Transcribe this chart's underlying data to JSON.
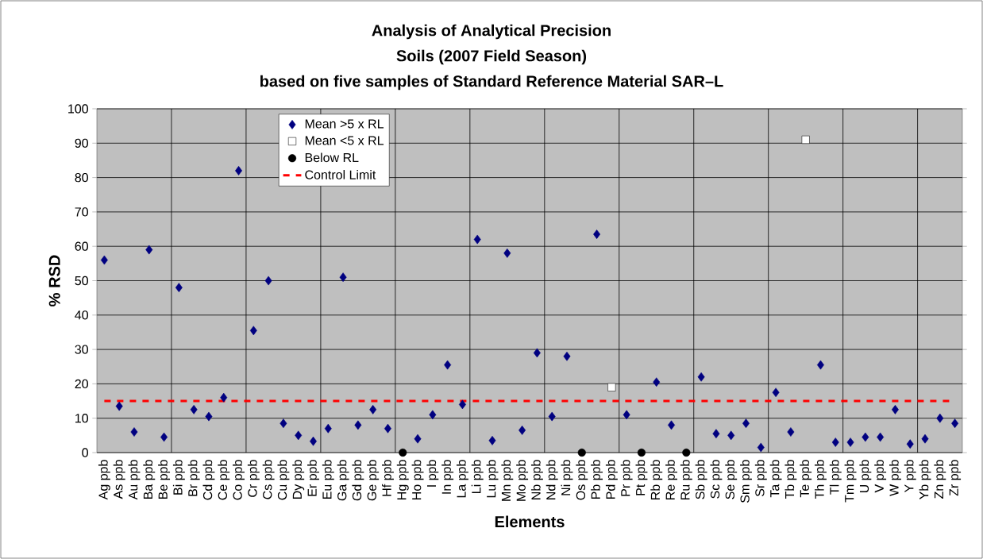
{
  "chart_data": {
    "type": "scatter",
    "title": "Analysis of Analytical Precision",
    "subtitle": "Soils (2007 Field Season)",
    "annotations": [
      "based on five samples of Standard Reference Material SAR–L"
    ],
    "xlabel": "Elements",
    "ylabel": "% RSD",
    "categories": [
      "Ag ppb",
      "As ppb",
      "Au ppb",
      "Ba ppb",
      "Be ppb",
      "Bi ppb",
      "Br ppb",
      "Cd ppb",
      "Ce ppb",
      "Co ppb",
      "Cr ppb",
      "Cs ppb",
      "Cu ppb",
      "Dy ppb",
      "Er ppb",
      "Eu ppb",
      "Ga ppb",
      "Gd ppb",
      "Ge ppb",
      "Hf ppb",
      "Hg ppb",
      "Ho ppb",
      "I ppb",
      "In ppb",
      "La ppb",
      "Li ppb",
      "Lu ppb",
      "Mn ppb",
      "Mo ppb",
      "Nb ppb",
      "Nd ppb",
      "Ni ppb",
      "Os ppb",
      "Pb ppb",
      "Pd ppb",
      "Pr ppb",
      "Pt ppb",
      "Rb ppb",
      "Re ppb",
      "Ru ppb",
      "Sb ppb",
      "Sc ppb",
      "Se ppb",
      "Sm ppb",
      "Sr ppb",
      "Ta ppb",
      "Tb ppb",
      "Te ppb",
      "Th ppb",
      "Tl ppb",
      "Tm ppb",
      "U ppb",
      "V ppb",
      "W ppb",
      "Y ppb",
      "Yb ppb",
      "Zn ppb",
      "Zr ppb"
    ],
    "series": [
      {
        "name": "Mean >5 x RL",
        "color": "#000080",
        "marker": "diamond",
        "values": [
          56,
          13.5,
          6,
          59,
          4.5,
          48,
          12.5,
          10.5,
          16,
          82,
          35.5,
          50,
          8.5,
          5,
          3.3,
          7,
          51,
          8,
          12.5,
          7,
          null,
          4,
          11,
          25.5,
          14,
          62,
          3.5,
          58,
          6.5,
          29,
          10.5,
          28,
          null,
          63.5,
          null,
          11,
          null,
          20.5,
          8,
          null,
          22,
          5.5,
          5,
          8.5,
          1.5,
          17.5,
          6,
          null,
          25.5,
          3,
          3,
          4.5,
          4.5,
          12.5,
          2.5,
          4,
          10,
          8.5
        ]
      },
      {
        "name": "Mean <5 x RL",
        "color": "#ffffff",
        "marker": "square",
        "values": [
          null,
          null,
          null,
          null,
          null,
          null,
          null,
          null,
          null,
          null,
          null,
          null,
          null,
          null,
          null,
          null,
          null,
          null,
          null,
          null,
          null,
          null,
          null,
          null,
          null,
          null,
          null,
          null,
          null,
          null,
          null,
          null,
          null,
          null,
          19,
          null,
          null,
          null,
          null,
          null,
          null,
          null,
          null,
          null,
          null,
          null,
          null,
          91,
          null,
          null,
          null,
          null,
          null,
          null,
          null,
          null,
          null,
          null
        ]
      },
      {
        "name": "Below RL",
        "color": "#000000",
        "marker": "circle",
        "values": [
          null,
          null,
          null,
          null,
          null,
          null,
          null,
          null,
          null,
          null,
          null,
          null,
          null,
          null,
          null,
          null,
          null,
          null,
          null,
          null,
          0,
          null,
          null,
          null,
          null,
          null,
          null,
          null,
          null,
          null,
          null,
          null,
          0,
          null,
          null,
          null,
          0,
          null,
          null,
          0,
          null,
          null,
          null,
          null,
          null,
          null,
          null,
          null,
          null,
          null,
          null,
          null,
          null,
          null,
          null,
          null,
          null,
          null
        ]
      }
    ],
    "ref_lines": [
      {
        "axis": "y",
        "value": 15,
        "label": "Control Limit",
        "color": "#ff0000",
        "line_style": "dashed"
      }
    ],
    "ylim": [
      0,
      100
    ],
    "yticks": [
      0,
      10,
      20,
      30,
      40,
      50,
      60,
      70,
      80,
      90,
      100
    ],
    "grid": true,
    "legend": "top"
  }
}
